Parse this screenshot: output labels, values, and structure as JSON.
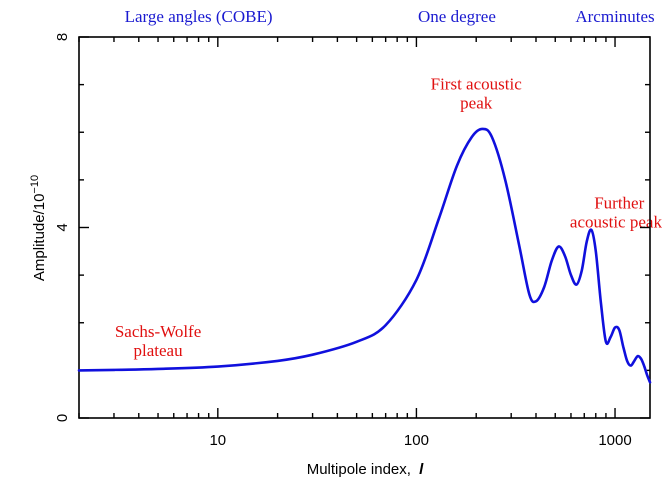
{
  "chart_data": {
    "type": "line",
    "xlabel": "Multipole index,",
    "xlabel_symbol": "l",
    "ylabel_base": "Amplitude/10",
    "ylabel_exp": "−10",
    "x_scale": "log",
    "xlim": [
      2,
      1500
    ],
    "ylim": [
      0,
      8
    ],
    "x_ticks": [
      {
        "value": 10,
        "label": "10"
      },
      {
        "value": 100,
        "label": "100"
      },
      {
        "value": 1000,
        "label": "1000"
      }
    ],
    "y_ticks": [
      {
        "value": 0,
        "label": "0"
      },
      {
        "value": 4,
        "label": "4"
      },
      {
        "value": 8,
        "label": "8"
      }
    ],
    "grid": false,
    "colors": {
      "curve": "#1010dd",
      "annotation": "#e01010",
      "scale_label": "#1a1ad0",
      "axes": "#000000"
    },
    "top_labels": [
      {
        "text": "Large angles (COBE)",
        "x": 8
      },
      {
        "text": "One degree",
        "x": 160
      },
      {
        "text": "Arcminutes",
        "x": 1000
      }
    ],
    "annotations": [
      {
        "lines": [
          "First acoustic",
          "peak"
        ],
        "x": 200,
        "y": 6.9
      },
      {
        "lines": [
          "Further",
          "acoustic peaks"
        ],
        "x": 1050,
        "y": 4.4
      },
      {
        "lines": [
          "Sachs-Wolfe",
          "plateau"
        ],
        "x": 5.0,
        "y": 1.7
      }
    ],
    "series": [
      {
        "x": [
          2,
          3,
          5,
          10,
          20,
          30,
          50,
          70,
          100,
          130,
          160,
          190,
          215,
          240,
          280,
          330,
          370,
          400,
          440,
          480,
          520,
          560,
          600,
          640,
          680,
          720,
          760,
          800,
          850,
          900,
          950,
          1000,
          1050,
          1100,
          1150,
          1200,
          1250,
          1300,
          1350,
          1400,
          1450,
          1500
        ],
        "y": [
          1.0,
          1.01,
          1.03,
          1.08,
          1.2,
          1.33,
          1.6,
          1.95,
          2.9,
          4.2,
          5.3,
          5.9,
          6.07,
          5.9,
          5.0,
          3.6,
          2.6,
          2.45,
          2.75,
          3.3,
          3.6,
          3.4,
          3.0,
          2.8,
          3.1,
          3.7,
          3.95,
          3.5,
          2.4,
          1.6,
          1.7,
          1.9,
          1.85,
          1.5,
          1.2,
          1.1,
          1.2,
          1.3,
          1.25,
          1.1,
          0.9,
          0.75
        ]
      }
    ]
  }
}
